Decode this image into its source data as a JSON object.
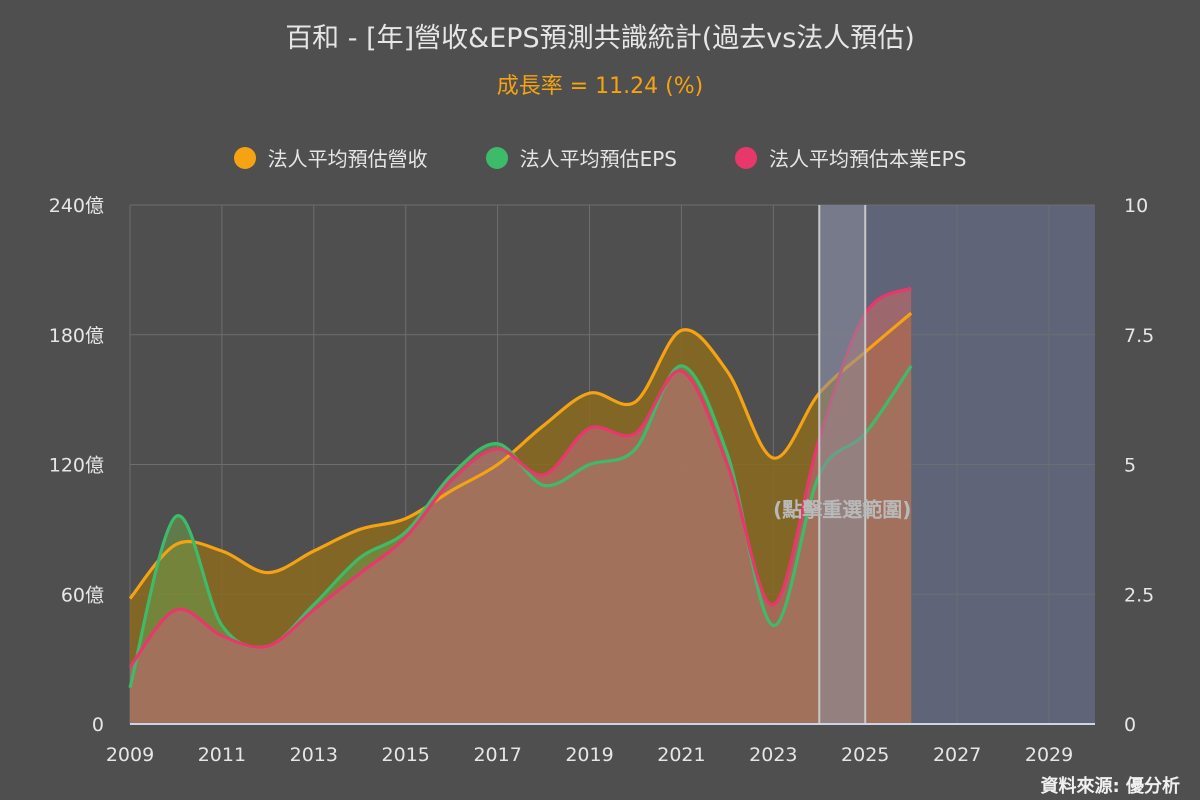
{
  "title": "百和 - [年]營收&EPS預測共識統計(過去vs法人預估)",
  "subtitle": "成長率 = 11.24 (%)",
  "source": "資料來源: 優分析",
  "select_hint": "(點擊重選範圍)",
  "colors": {
    "background": "#4f4f4f",
    "grid": "#6e6e6e",
    "axis_text": "#e6e6e6",
    "revenue": "#f5a312",
    "eps": "#3dbb6a",
    "core_eps": "#e8386b",
    "forecast_band": "#5f6478",
    "selection": "#888c99",
    "subtitle": "#f5a312"
  },
  "legend": [
    {
      "label": "法人平均預估營收",
      "color": "#f5a312"
    },
    {
      "label": "法人平均預估EPS",
      "color": "#3dbb6a"
    },
    {
      "label": "法人平均預估本業EPS",
      "color": "#e8386b"
    }
  ],
  "chart_data": {
    "type": "area",
    "x": [
      2009,
      2010,
      2011,
      2012,
      2013,
      2014,
      2015,
      2016,
      2017,
      2018,
      2019,
      2020,
      2021,
      2022,
      2023,
      2024,
      2025,
      2026
    ],
    "x_ticks": [
      "2009",
      "2011",
      "2013",
      "2015",
      "2017",
      "2019",
      "2021",
      "2023",
      "2025",
      "2027",
      "2029"
    ],
    "xlim": [
      2009,
      2030
    ],
    "y_left_ticks": [
      "0",
      "60億",
      "120億",
      "180億",
      "240億"
    ],
    "y_left_lim": [
      0,
      240
    ],
    "y_right_ticks": [
      "0",
      "2.5",
      "5",
      "7.5",
      "10"
    ],
    "y_right_lim": [
      0,
      10
    ],
    "grid": true,
    "legend_position": "top",
    "forecast_start": 2024,
    "selection_range": [
      2024,
      2025
    ],
    "series": [
      {
        "name": "法人平均預估營收",
        "axis": "left",
        "color": "#f5a312",
        "values": [
          58,
          83,
          80,
          70,
          80,
          90,
          95,
          108,
          120,
          138,
          153,
          149,
          182,
          163,
          123,
          153,
          172,
          190
        ]
      },
      {
        "name": "法人平均預估EPS",
        "axis": "right",
        "color": "#3dbb6a",
        "values": [
          0.7,
          4.0,
          1.9,
          1.5,
          2.3,
          3.2,
          3.7,
          4.8,
          5.4,
          4.6,
          5.0,
          5.3,
          6.9,
          5.2,
          1.9,
          4.8,
          5.6,
          6.9
        ]
      },
      {
        "name": "法人平均預估本業EPS",
        "axis": "right",
        "color": "#e8386b",
        "values": [
          1.1,
          2.2,
          1.7,
          1.5,
          2.2,
          2.9,
          3.6,
          4.7,
          5.3,
          4.8,
          5.7,
          5.6,
          6.8,
          5.0,
          2.3,
          5.5,
          7.9,
          8.4
        ]
      }
    ]
  }
}
